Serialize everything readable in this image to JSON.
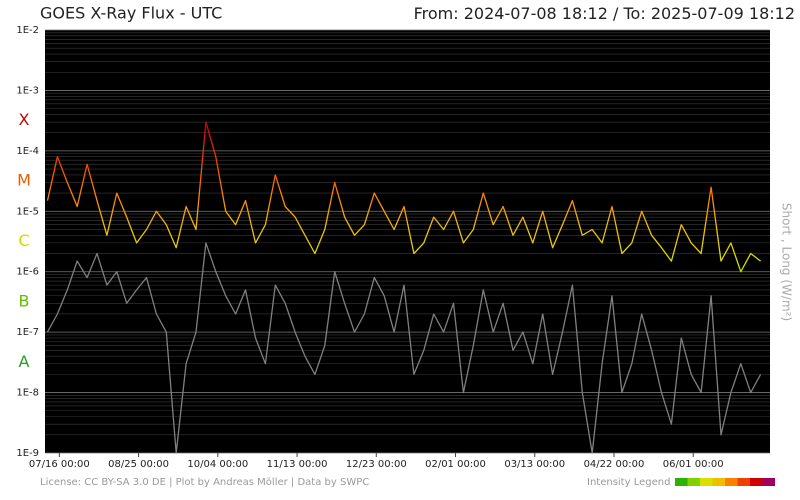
{
  "chart_data": {
    "type": "line",
    "title": "GOES X-Ray Flux - UTC",
    "from_label": "From:",
    "to_label": "To:",
    "range_separator": "/",
    "xlim": [
      "2024-07-08 18:12",
      "2025-07-09 18:12"
    ],
    "xticks": [
      {
        "value": "2024-07-16 00:00",
        "label": "07/16 00:00"
      },
      {
        "value": "2024-08-25 00:00",
        "label": "08/25 00:00"
      },
      {
        "value": "2024-10-04 00:00",
        "label": "10/04 00:00"
      },
      {
        "value": "2024-11-13 00:00",
        "label": "11/13 00:00"
      },
      {
        "value": "2024-12-23 00:00",
        "label": "12/23 00:00"
      },
      {
        "value": "2025-02-01 00:00",
        "label": "02/01 00:00"
      },
      {
        "value": "2025-03-13 00:00",
        "label": "03/13 00:00"
      },
      {
        "value": "2025-04-22 00:00",
        "label": "04/22 00:00"
      },
      {
        "value": "2025-06-01 00:00",
        "label": "06/01 00:00"
      }
    ],
    "ylim": [
      1e-09,
      0.01
    ],
    "log_scale": true,
    "grid": true,
    "yticks": [
      {
        "value": 0.01,
        "label": "1E-2"
      },
      {
        "value": 0.001,
        "label": "1E-3"
      },
      {
        "value": 0.0001,
        "label": "1E-4"
      },
      {
        "value": 1e-05,
        "label": "1E-5"
      },
      {
        "value": 1e-06,
        "label": "1E-6"
      },
      {
        "value": 1e-07,
        "label": "1E-7"
      },
      {
        "value": 1e-08,
        "label": "1E-8"
      },
      {
        "value": 1e-09,
        "label": "1E-9"
      }
    ],
    "ylabel": "Short , Long (W/m²)",
    "classes": [
      {
        "label": "X",
        "color": "#cc0000"
      },
      {
        "label": "M",
        "color": "#e86000"
      },
      {
        "label": "C",
        "color": "#d8d800"
      },
      {
        "label": "B",
        "color": "#60c000"
      },
      {
        "label": "A",
        "color": "#20a020"
      }
    ],
    "x": [
      "2024-07-10",
      "2024-07-15",
      "2024-07-20",
      "2024-07-25",
      "2024-07-30",
      "2024-08-04",
      "2024-08-09",
      "2024-08-14",
      "2024-08-19",
      "2024-08-24",
      "2024-08-29",
      "2024-09-03",
      "2024-09-08",
      "2024-09-13",
      "2024-09-18",
      "2024-09-23",
      "2024-09-28",
      "2024-10-03",
      "2024-10-08",
      "2024-10-13",
      "2024-10-18",
      "2024-10-23",
      "2024-10-28",
      "2024-11-02",
      "2024-11-07",
      "2024-11-12",
      "2024-11-17",
      "2024-11-22",
      "2024-11-27",
      "2024-12-02",
      "2024-12-07",
      "2024-12-12",
      "2024-12-17",
      "2024-12-22",
      "2024-12-27",
      "2025-01-01",
      "2025-01-06",
      "2025-01-11",
      "2025-01-16",
      "2025-01-21",
      "2025-01-26",
      "2025-01-31",
      "2025-02-05",
      "2025-02-10",
      "2025-02-15",
      "2025-02-20",
      "2025-02-25",
      "2025-03-02",
      "2025-03-07",
      "2025-03-12",
      "2025-03-17",
      "2025-03-22",
      "2025-03-27",
      "2025-04-01",
      "2025-04-06",
      "2025-04-11",
      "2025-04-16",
      "2025-04-21",
      "2025-04-26",
      "2025-05-01",
      "2025-05-06",
      "2025-05-11",
      "2025-05-16",
      "2025-05-21",
      "2025-05-26",
      "2025-05-31",
      "2025-06-05",
      "2025-06-10",
      "2025-06-15",
      "2025-06-20",
      "2025-06-25",
      "2025-06-30",
      "2025-07-05"
    ],
    "series": [
      {
        "color": "#808080",
        "values": [
          1e-07,
          2e-07,
          5e-07,
          1.5e-06,
          8e-07,
          2e-06,
          6e-07,
          1e-06,
          3e-07,
          5e-07,
          8e-07,
          2e-07,
          1e-07,
          1e-09,
          3e-08,
          1e-07,
          3e-06,
          1e-06,
          4e-07,
          2e-07,
          5e-07,
          8e-08,
          3e-08,
          6e-07,
          3e-07,
          1e-07,
          4e-08,
          2e-08,
          6e-08,
          1e-06,
          3e-07,
          1e-07,
          2e-07,
          8e-07,
          4e-07,
          1e-07,
          6e-07,
          2e-08,
          5e-08,
          2e-07,
          1e-07,
          3e-07,
          1e-08,
          6e-08,
          5e-07,
          1e-07,
          3e-07,
          5e-08,
          1e-07,
          3e-08,
          2e-07,
          2e-08,
          1e-07,
          6e-07,
          1e-08,
          1e-09,
          3e-08,
          4e-07,
          1e-08,
          3e-08,
          2e-07,
          5e-08,
          1e-08,
          3e-09,
          8e-08,
          2e-08,
          1e-08,
          4e-07,
          2e-09,
          1e-08,
          3e-08,
          1e-08,
          2e-08
        ]
      },
      {
        "intensity": true,
        "values": [
          1.5e-05,
          8e-05,
          3e-05,
          1.2e-05,
          6e-05,
          1.5e-05,
          4e-06,
          2e-05,
          8e-06,
          3e-06,
          5e-06,
          1e-05,
          6e-06,
          2.5e-06,
          1.2e-05,
          5e-06,
          0.0003,
          8e-05,
          1e-05,
          6e-06,
          1.5e-05,
          3e-06,
          6e-06,
          4e-05,
          1.2e-05,
          8e-06,
          4e-06,
          2e-06,
          5e-06,
          3e-05,
          8e-06,
          4e-06,
          6e-06,
          2e-05,
          1e-05,
          5e-06,
          1.2e-05,
          2e-06,
          3e-06,
          8e-06,
          5e-06,
          1e-05,
          3e-06,
          5e-06,
          2e-05,
          6e-06,
          1.2e-05,
          4e-06,
          8e-06,
          3e-06,
          1e-05,
          2.5e-06,
          6e-06,
          1.5e-05,
          4e-06,
          5e-06,
          3e-06,
          1.2e-05,
          2e-06,
          3e-06,
          1e-05,
          4e-06,
          2.5e-06,
          1.5e-06,
          6e-06,
          3e-06,
          2e-06,
          2.5e-05,
          1.5e-06,
          3e-06,
          1e-06,
          2e-06,
          1.5e-06
        ]
      }
    ],
    "intensity_legend": {
      "label": "Intensity Legend",
      "colors": [
        "#30b000",
        "#80d000",
        "#d8e000",
        "#f0c000",
        "#ff8000",
        "#f04000",
        "#d00000",
        "#a00060"
      ]
    },
    "credits": "License: CC BY-SA 3.0 DE | Plot by Andreas Möller | Data by SWPC"
  }
}
